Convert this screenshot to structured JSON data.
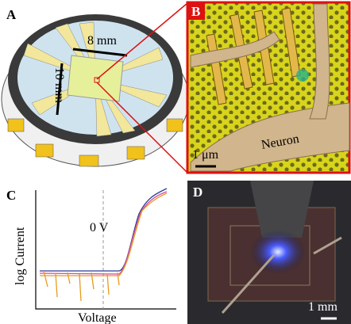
{
  "panels": [
    {
      "label": "A",
      "texts": [
        "8 mm",
        "10 mm"
      ]
    },
    {
      "label": "B",
      "texts": [
        "Neuron",
        "1 μm"
      ]
    },
    {
      "label": "C",
      "y_label": "log Current",
      "x_label": "Voltage",
      "annotation": "0 V"
    },
    {
      "label": "D",
      "scale": "1 mm"
    }
  ]
}
